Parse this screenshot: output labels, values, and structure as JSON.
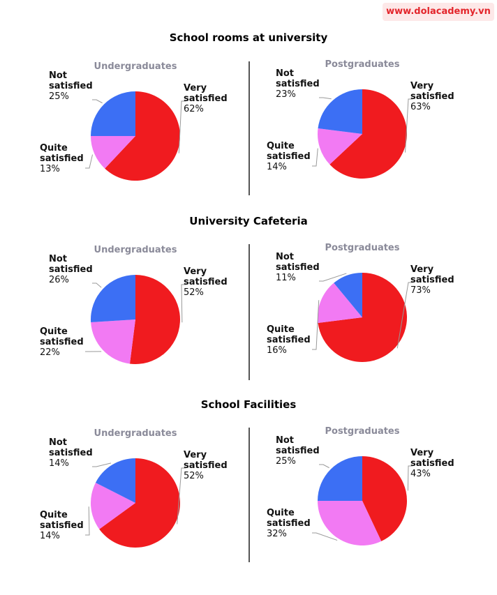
{
  "watermark": "www.dolacademy.vn",
  "chart_data": [
    {
      "type": "pie",
      "title": "School rooms at university",
      "subtitle": "Undergraduates",
      "categories": [
        "Very satisfied",
        "Quite satisfied",
        "Not satisfied"
      ],
      "values": [
        62,
        13,
        25
      ],
      "value_labels": [
        "62%",
        "13%",
        "25%"
      ],
      "colors": [
        "#f01b1f",
        "#f27af3",
        "#3c6ff4"
      ]
    },
    {
      "type": "pie",
      "subtitle": "Postgraduates",
      "categories": [
        "Very satisfied",
        "Quite satisfied",
        "Not satisfied"
      ],
      "values": [
        63,
        14,
        23
      ],
      "value_labels": [
        "63%",
        "14%",
        "23%"
      ],
      "colors": [
        "#f01b1f",
        "#f27af3",
        "#3c6ff4"
      ]
    },
    {
      "type": "pie",
      "title": "University Cafeteria",
      "subtitle": "Undergraduates",
      "categories": [
        "Very satisfied",
        "Quite satisfied",
        "Not satisfied"
      ],
      "values": [
        52,
        22,
        26
      ],
      "value_labels": [
        "52%",
        "22%",
        "26%"
      ],
      "colors": [
        "#f01b1f",
        "#f27af3",
        "#3c6ff4"
      ]
    },
    {
      "type": "pie",
      "subtitle": "Postgraduates",
      "categories": [
        "Very satisfied",
        "Quite satisfied",
        "Not satisfied"
      ],
      "values": [
        73,
        16,
        11
      ],
      "value_labels": [
        "73%",
        "16%",
        "11%"
      ],
      "colors": [
        "#f01b1f",
        "#f27af3",
        "#3c6ff4"
      ]
    },
    {
      "type": "pie",
      "title": "School Facilities",
      "subtitle": "Undergraduates",
      "categories": [
        "Very satisfied",
        "Quite satisfied",
        "Not satisfied"
      ],
      "values": [
        52,
        14,
        14
      ],
      "value_labels": [
        "52%",
        "14%",
        "14%"
      ],
      "colors": [
        "#f01b1f",
        "#f27af3",
        "#3c6ff4"
      ]
    },
    {
      "type": "pie",
      "subtitle": "Postgraduates",
      "categories": [
        "Very satisfied",
        "Quite satisfied",
        "Not satisfied"
      ],
      "values": [
        43,
        32,
        25
      ],
      "value_labels": [
        "43%",
        "32%",
        "25%"
      ],
      "colors": [
        "#f01b1f",
        "#f27af3",
        "#3c6ff4"
      ]
    }
  ]
}
